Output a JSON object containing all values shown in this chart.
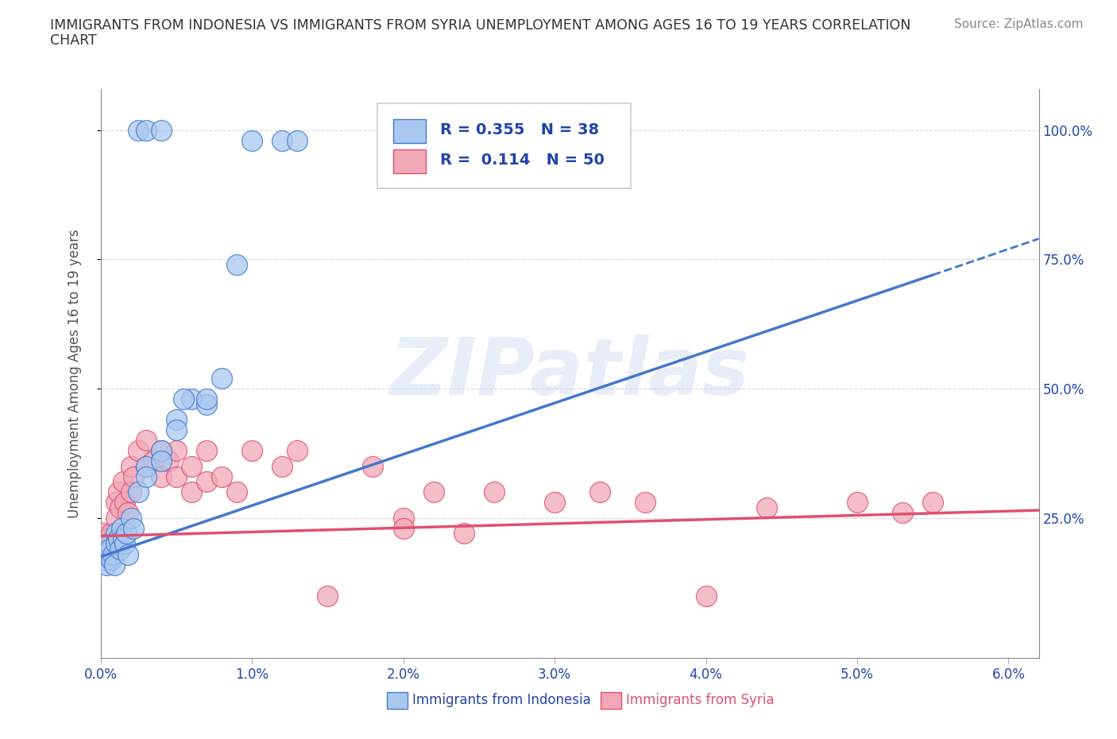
{
  "title": "IMMIGRANTS FROM INDONESIA VS IMMIGRANTS FROM SYRIA UNEMPLOYMENT AMONG AGES 16 TO 19 YEARS CORRELATION\nCHART",
  "source_text": "Source: ZipAtlas.com",
  "ylabel": "Unemployment Among Ages 16 to 19 years",
  "watermark": "ZIPatlas",
  "xlim": [
    0.0,
    0.062
  ],
  "ylim": [
    -0.02,
    1.08
  ],
  "xtick_labels": [
    "0.0%",
    "1.0%",
    "2.0%",
    "3.0%",
    "4.0%",
    "5.0%",
    "6.0%"
  ],
  "xtick_values": [
    0.0,
    0.01,
    0.02,
    0.03,
    0.04,
    0.05,
    0.06
  ],
  "ytick_labels": [
    "25.0%",
    "50.0%",
    "75.0%",
    "100.0%"
  ],
  "ytick_values": [
    0.25,
    0.5,
    0.75,
    1.0
  ],
  "r_indonesia": 0.355,
  "n_indonesia": 38,
  "r_syria": 0.114,
  "n_syria": 50,
  "color_indonesia": "#a8c8f0",
  "color_syria": "#f0a8b8",
  "color_indonesia_line": "#4477cc",
  "color_syria_line": "#e05070",
  "color_text_blue": "#2244aa",
  "legend_label_indonesia": "Immigrants from Indonesia",
  "legend_label_syria": "Immigrants from Syria",
  "indo_x": [
    0.0002,
    0.0003,
    0.0004,
    0.0005,
    0.0006,
    0.0007,
    0.0008,
    0.0009,
    0.001,
    0.001,
    0.0012,
    0.0013,
    0.0014,
    0.0015,
    0.0016,
    0.0017,
    0.0018,
    0.002,
    0.0022,
    0.0025,
    0.003,
    0.003,
    0.004,
    0.004,
    0.005,
    0.005,
    0.006,
    0.007,
    0.008,
    0.009,
    0.01,
    0.012,
    0.013,
    0.0025,
    0.003,
    0.004,
    0.0055,
    0.007
  ],
  "indo_y": [
    0.17,
    0.18,
    0.16,
    0.2,
    0.19,
    0.17,
    0.18,
    0.16,
    0.22,
    0.2,
    0.21,
    0.19,
    0.23,
    0.21,
    0.2,
    0.22,
    0.18,
    0.25,
    0.23,
    0.3,
    0.35,
    0.33,
    0.38,
    0.36,
    0.44,
    0.42,
    0.48,
    0.47,
    0.52,
    0.74,
    0.98,
    0.98,
    0.98,
    1.0,
    1.0,
    1.0,
    0.48,
    0.48
  ],
  "syria_x": [
    0.0001,
    0.0002,
    0.0003,
    0.0004,
    0.0005,
    0.0006,
    0.0007,
    0.001,
    0.001,
    0.0012,
    0.0013,
    0.0015,
    0.0016,
    0.0018,
    0.002,
    0.002,
    0.0022,
    0.0025,
    0.003,
    0.003,
    0.0035,
    0.004,
    0.004,
    0.0045,
    0.005,
    0.005,
    0.006,
    0.006,
    0.007,
    0.007,
    0.008,
    0.009,
    0.01,
    0.012,
    0.013,
    0.015,
    0.018,
    0.02,
    0.022,
    0.024,
    0.026,
    0.03,
    0.033,
    0.036,
    0.04,
    0.044,
    0.05,
    0.053,
    0.055,
    0.02
  ],
  "syria_y": [
    0.2,
    0.22,
    0.2,
    0.18,
    0.21,
    0.19,
    0.22,
    0.28,
    0.25,
    0.3,
    0.27,
    0.32,
    0.28,
    0.26,
    0.35,
    0.3,
    0.33,
    0.38,
    0.4,
    0.35,
    0.36,
    0.38,
    0.33,
    0.36,
    0.38,
    0.33,
    0.35,
    0.3,
    0.38,
    0.32,
    0.33,
    0.3,
    0.38,
    0.35,
    0.38,
    0.1,
    0.35,
    0.25,
    0.3,
    0.22,
    0.3,
    0.28,
    0.3,
    0.28,
    0.1,
    0.27,
    0.28,
    0.26,
    0.28,
    0.23
  ],
  "background_color": "#ffffff",
  "grid_color": "#cccccc",
  "title_color": "#333333",
  "axis_label_color": "#555555",
  "indo_line_x0": 0.0,
  "indo_line_y0": 0.175,
  "indo_line_x1": 0.055,
  "indo_line_y1": 0.72,
  "indo_line_x1_dash": 0.062,
  "indo_line_y1_dash": 0.79,
  "syria_line_x0": 0.0,
  "syria_line_y0": 0.215,
  "syria_line_x1": 0.062,
  "syria_line_y1": 0.265
}
